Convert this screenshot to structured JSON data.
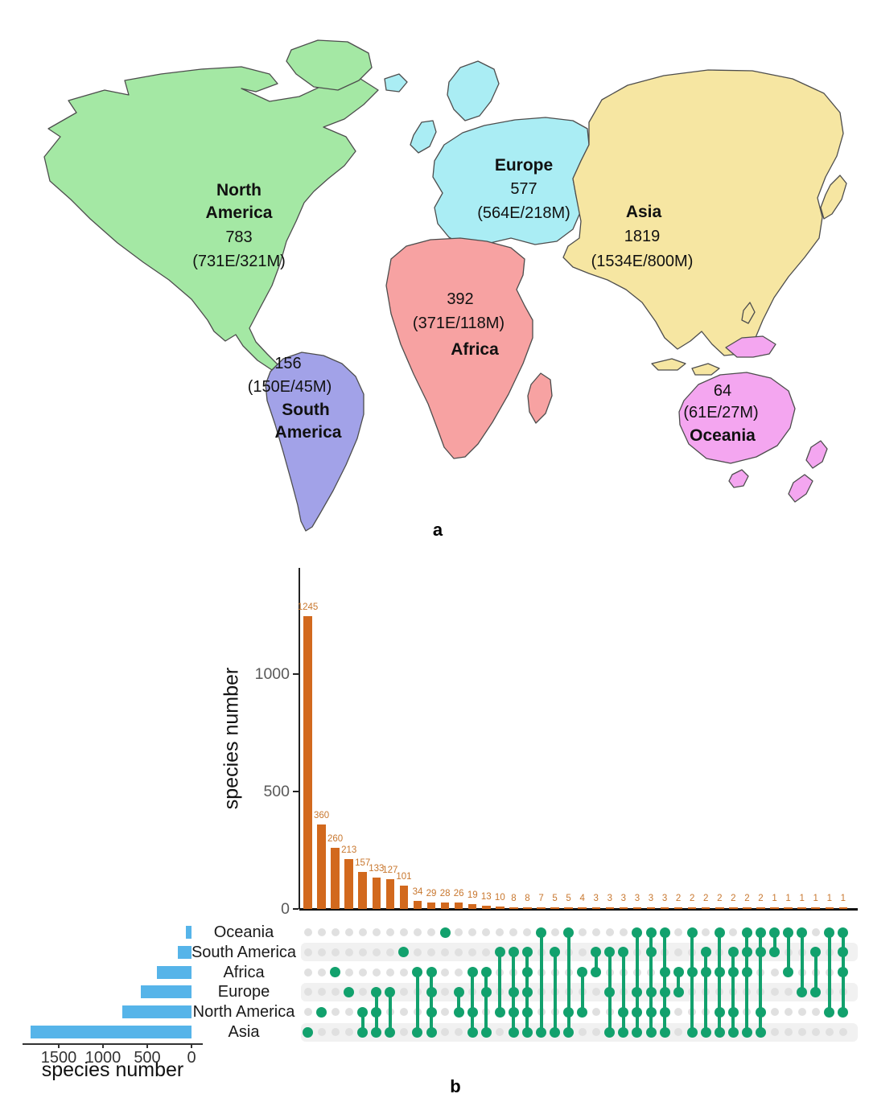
{
  "panel_a": {
    "label": "a",
    "continents": [
      {
        "name_lines": [
          "North",
          "America"
        ],
        "total": "783",
        "detail": "(731E/321M)",
        "fill": "#A4E8A4"
      },
      {
        "name_lines": [
          "South",
          "America"
        ],
        "total": "156",
        "detail": "(150E/45M)",
        "fill": "#A2A2E8"
      },
      {
        "name_lines": [
          "Europe"
        ],
        "total": "577",
        "detail": "(564E/218M)",
        "fill": "#AAEDF4"
      },
      {
        "name_lines": [
          "Africa"
        ],
        "total": "392",
        "detail": "(371E/118M)",
        "fill": "#F7A2A2"
      },
      {
        "name_lines": [
          "Asia"
        ],
        "total": "1819",
        "detail": "(1534E/800M)",
        "fill": "#F6E6A2"
      },
      {
        "name_lines": [
          "Oceania"
        ],
        "total": "64",
        "detail": "(61E/27M)",
        "fill": "#F4A6F0"
      }
    ]
  },
  "panel_b": {
    "label": "b"
  },
  "chart_data": {
    "type": "upset",
    "row_sets": [
      {
        "name": "Oceania",
        "size": 64
      },
      {
        "name": "South America",
        "size": 156
      },
      {
        "name": "Africa",
        "size": 392
      },
      {
        "name": "Europe",
        "size": 577
      },
      {
        "name": "North America",
        "size": 783
      },
      {
        "name": "Asia",
        "size": 1819
      }
    ],
    "intersections": [
      {
        "value": 1245,
        "members": [
          "Asia"
        ]
      },
      {
        "value": 360,
        "members": [
          "North America"
        ]
      },
      {
        "value": 260,
        "members": [
          "Africa"
        ]
      },
      {
        "value": 213,
        "members": [
          "Europe"
        ]
      },
      {
        "value": 157,
        "members": [
          "North America",
          "Asia"
        ]
      },
      {
        "value": 133,
        "members": [
          "Europe",
          "North America",
          "Asia"
        ]
      },
      {
        "value": 127,
        "members": [
          "Europe",
          "Asia"
        ]
      },
      {
        "value": 101,
        "members": [
          "South America"
        ]
      },
      {
        "value": 34,
        "members": [
          "Africa",
          "Asia"
        ]
      },
      {
        "value": 29,
        "members": [
          "Africa",
          "Europe",
          "North America",
          "Asia"
        ]
      },
      {
        "value": 28,
        "members": [
          "Oceania"
        ]
      },
      {
        "value": 26,
        "members": [
          "Europe",
          "North America"
        ]
      },
      {
        "value": 19,
        "members": [
          "Africa",
          "North America",
          "Asia"
        ]
      },
      {
        "value": 13,
        "members": [
          "Africa",
          "Europe",
          "Asia"
        ]
      },
      {
        "value": 10,
        "members": [
          "South America",
          "North America"
        ]
      },
      {
        "value": 8,
        "members": [
          "South America",
          "Europe",
          "North America",
          "Asia"
        ]
      },
      {
        "value": 8,
        "members": [
          "South America",
          "Africa",
          "Europe",
          "North America",
          "Asia"
        ]
      },
      {
        "value": 7,
        "members": [
          "Oceania",
          "Asia"
        ]
      },
      {
        "value": 5,
        "members": [
          "South America",
          "Asia"
        ]
      },
      {
        "value": 5,
        "members": [
          "Oceania",
          "North America",
          "Asia"
        ]
      },
      {
        "value": 4,
        "members": [
          "Africa",
          "North America"
        ]
      },
      {
        "value": 3,
        "members": [
          "South America",
          "Africa"
        ]
      },
      {
        "value": 3,
        "members": [
          "South America",
          "Europe",
          "Asia"
        ]
      },
      {
        "value": 3,
        "members": [
          "South America",
          "North America",
          "Asia"
        ]
      },
      {
        "value": 3,
        "members": [
          "Oceania",
          "Europe",
          "North America",
          "Asia"
        ]
      },
      {
        "value": 3,
        "members": [
          "Oceania",
          "South America",
          "Europe",
          "North America",
          "Asia"
        ]
      },
      {
        "value": 3,
        "members": [
          "Oceania",
          "Africa",
          "Europe",
          "North America",
          "Asia"
        ]
      },
      {
        "value": 2,
        "members": [
          "Africa",
          "Europe"
        ]
      },
      {
        "value": 2,
        "members": [
          "Oceania",
          "Africa",
          "Asia"
        ]
      },
      {
        "value": 2,
        "members": [
          "South America",
          "Africa",
          "Asia"
        ]
      },
      {
        "value": 2,
        "members": [
          "Oceania",
          "Africa",
          "North America",
          "Asia"
        ]
      },
      {
        "value": 2,
        "members": [
          "South America",
          "Africa",
          "North America",
          "Asia"
        ]
      },
      {
        "value": 2,
        "members": [
          "Oceania",
          "South America",
          "Africa",
          "Asia"
        ]
      },
      {
        "value": 2,
        "members": [
          "Oceania",
          "South America",
          "North America",
          "Asia"
        ]
      },
      {
        "value": 1,
        "members": [
          "Oceania",
          "South America"
        ]
      },
      {
        "value": 1,
        "members": [
          "Oceania",
          "Africa"
        ]
      },
      {
        "value": 1,
        "members": [
          "Oceania",
          "Europe"
        ]
      },
      {
        "value": 1,
        "members": [
          "South America",
          "Europe"
        ]
      },
      {
        "value": 1,
        "members": [
          "Oceania",
          "North America"
        ]
      },
      {
        "value": 1,
        "members": [
          "Oceania",
          "South America",
          "Africa",
          "North America"
        ]
      }
    ],
    "top_axis": {
      "label": "species number",
      "ticks": [
        0,
        500,
        1000
      ]
    },
    "bottom_axis": {
      "label": "species number",
      "ticks": [
        1500,
        1000,
        500,
        0
      ]
    },
    "colors": {
      "intersection_bar": "#D2691E",
      "bar_value_label": "#C8772E",
      "set_size_bar": "#56B4E9",
      "matrix_dot_active": "#12A16D",
      "matrix_dot_inactive": "#E0E0E0",
      "matrix_stripe": "#F1F1F1",
      "axis_line": "#222222",
      "tick_text": "#595959"
    }
  }
}
